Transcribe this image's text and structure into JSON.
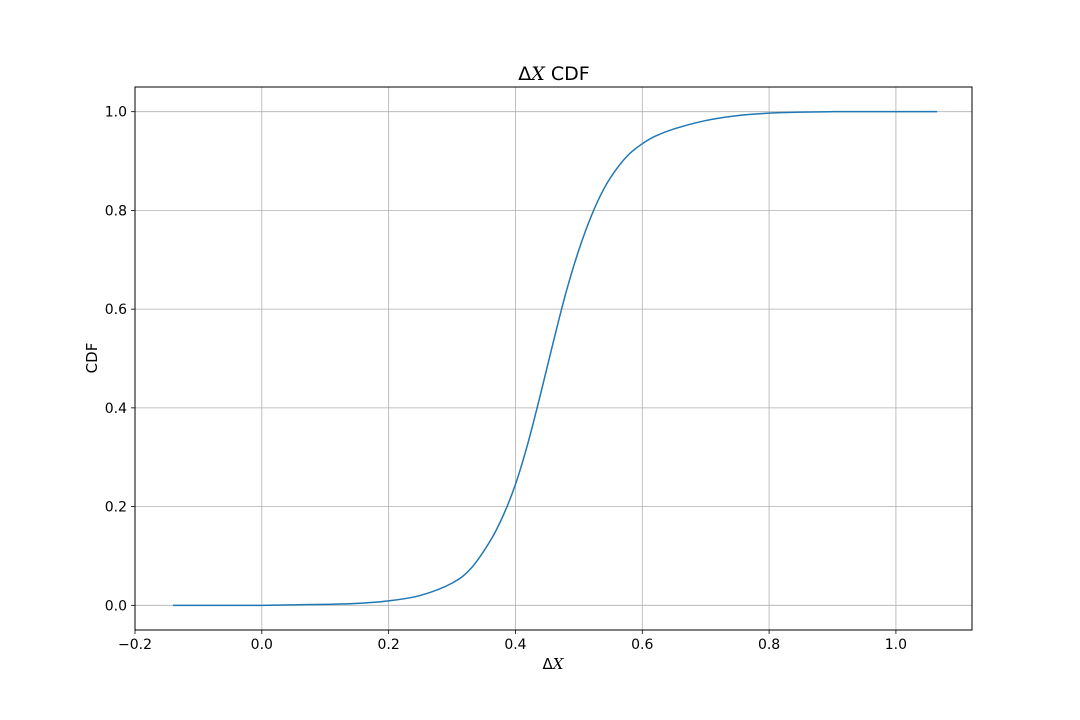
{
  "chart_data": {
    "type": "line",
    "title": {
      "delta": "Δ",
      "var": "X",
      "rest": " CDF"
    },
    "xlabel": {
      "delta": "Δ",
      "var": "X"
    },
    "ylabel": "CDF",
    "xlim": [
      -0.2,
      1.12
    ],
    "ylim": [
      -0.05,
      1.05
    ],
    "xticks": [
      -0.2,
      0.0,
      0.2,
      0.4,
      0.6,
      0.8,
      1.0
    ],
    "xtick_labels": [
      "−0.2",
      "0.0",
      "0.2",
      "0.4",
      "0.6",
      "0.8",
      "1.0"
    ],
    "yticks": [
      0.0,
      0.2,
      0.4,
      0.6,
      0.8,
      1.0
    ],
    "ytick_labels": [
      "0.0",
      "0.2",
      "0.4",
      "0.6",
      "0.8",
      "1.0"
    ],
    "grid": true,
    "legend": "none",
    "series": [
      {
        "color": "#1f77b4",
        "x": [
          -0.14,
          -0.1,
          -0.05,
          0.0,
          0.05,
          0.1,
          0.15,
          0.2,
          0.25,
          0.3,
          0.33,
          0.36,
          0.38,
          0.4,
          0.42,
          0.44,
          0.46,
          0.48,
          0.5,
          0.52,
          0.54,
          0.56,
          0.58,
          0.6,
          0.62,
          0.65,
          0.7,
          0.75,
          0.8,
          0.85,
          0.9,
          0.95,
          1.0,
          1.065
        ],
        "y": [
          0.0,
          0.0,
          0.0,
          0.0,
          0.001,
          0.002,
          0.004,
          0.009,
          0.02,
          0.045,
          0.075,
          0.13,
          0.18,
          0.245,
          0.33,
          0.43,
          0.535,
          0.635,
          0.72,
          0.79,
          0.845,
          0.885,
          0.915,
          0.935,
          0.95,
          0.965,
          0.982,
          0.992,
          0.997,
          0.999,
          1.0,
          1.0,
          1.0,
          1.0
        ]
      }
    ]
  }
}
